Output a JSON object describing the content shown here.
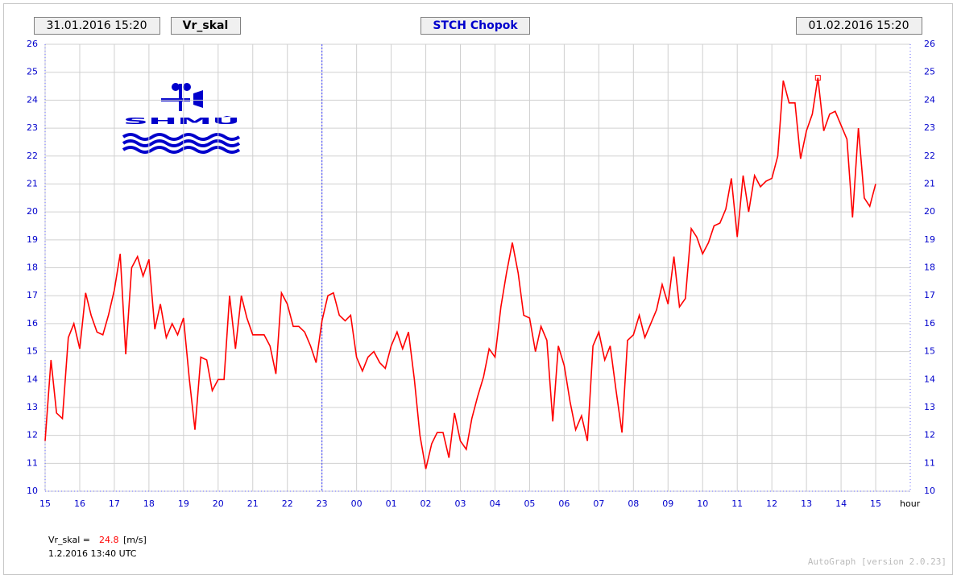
{
  "chart_data": {
    "type": "line",
    "title": "STCH Chopok",
    "start_time": "31.01.2016 15:20",
    "end_time": "01.02.2016 15:20",
    "variable": "Vr_skal",
    "logo": "SHMÚ",
    "xlabel": "hour",
    "color": "#ff0000",
    "grid": true,
    "xlim": [
      0,
      25
    ],
    "ylim": [
      10,
      26
    ],
    "yticks": [
      10,
      11,
      12,
      13,
      14,
      15,
      16,
      17,
      18,
      19,
      20,
      21,
      22,
      23,
      24,
      25,
      26
    ],
    "xticks": [
      {
        "value": 0,
        "label": "15"
      },
      {
        "value": 1,
        "label": "16"
      },
      {
        "value": 2,
        "label": "17"
      },
      {
        "value": 3,
        "label": "18"
      },
      {
        "value": 4,
        "label": "19"
      },
      {
        "value": 5,
        "label": "20"
      },
      {
        "value": 6,
        "label": "21"
      },
      {
        "value": 7,
        "label": "22"
      },
      {
        "value": 8,
        "label": "23"
      },
      {
        "value": 9,
        "label": "00"
      },
      {
        "value": 10,
        "label": "01"
      },
      {
        "value": 11,
        "label": "02"
      },
      {
        "value": 12,
        "label": "03"
      },
      {
        "value": 13,
        "label": "04"
      },
      {
        "value": 14,
        "label": "05"
      },
      {
        "value": 15,
        "label": "06"
      },
      {
        "value": 16,
        "label": "07"
      },
      {
        "value": 17,
        "label": "08"
      },
      {
        "value": 18,
        "label": "09"
      },
      {
        "value": 19,
        "label": "10"
      },
      {
        "value": 20,
        "label": "11"
      },
      {
        "value": 21,
        "label": "12"
      },
      {
        "value": 22,
        "label": "13"
      },
      {
        "value": 23,
        "label": "14"
      },
      {
        "value": 24,
        "label": "15"
      }
    ],
    "vline": 8,
    "x": [
      0,
      0.17,
      0.33,
      0.5,
      0.67,
      0.83,
      1,
      1.17,
      1.33,
      1.5,
      1.67,
      1.83,
      2,
      2.17,
      2.33,
      2.5,
      2.67,
      2.83,
      3,
      3.17,
      3.33,
      3.5,
      3.67,
      3.83,
      4,
      4.17,
      4.33,
      4.5,
      4.67,
      4.83,
      5,
      5.17,
      5.33,
      5.5,
      5.67,
      5.83,
      6,
      6.17,
      6.33,
      6.5,
      6.67,
      6.83,
      7,
      7.17,
      7.33,
      7.5,
      7.67,
      7.83,
      8,
      8.17,
      8.33,
      8.5,
      8.67,
      8.83,
      9,
      9.17,
      9.33,
      9.5,
      9.67,
      9.83,
      10,
      10.17,
      10.33,
      10.5,
      10.67,
      10.83,
      11,
      11.17,
      11.33,
      11.5,
      11.67,
      11.83,
      12,
      12.17,
      12.33,
      12.5,
      12.67,
      12.83,
      13,
      13.17,
      13.33,
      13.5,
      13.67,
      13.83,
      14,
      14.17,
      14.33,
      14.5,
      14.67,
      14.83,
      15,
      15.17,
      15.33,
      15.5,
      15.67,
      15.83,
      16,
      16.17,
      16.33,
      16.5,
      16.67,
      16.83,
      17,
      17.17,
      17.33,
      17.5,
      17.67,
      17.83,
      18,
      18.17,
      18.33,
      18.5,
      18.67,
      18.83,
      19,
      19.17,
      19.33,
      19.5,
      19.67,
      19.83,
      20,
      20.17,
      20.33,
      20.5,
      20.67,
      20.83,
      21,
      21.17,
      21.33,
      21.5,
      21.67,
      21.83,
      22,
      22.17,
      22.33,
      22.5,
      22.67,
      22.83,
      23,
      23.17,
      23.33,
      23.5,
      23.67,
      23.83,
      24
    ],
    "values": [
      11.8,
      14.7,
      12.8,
      12.6,
      15.5,
      16.0,
      15.1,
      17.1,
      16.3,
      15.7,
      15.6,
      16.3,
      17.2,
      18.5,
      14.9,
      18.0,
      18.4,
      17.7,
      18.3,
      15.8,
      16.7,
      15.5,
      16.0,
      15.6,
      16.2,
      14.0,
      12.2,
      14.8,
      14.7,
      13.6,
      14.0,
      14.0,
      17.0,
      15.1,
      17.0,
      16.2,
      15.6,
      15.6,
      15.6,
      15.2,
      14.2,
      17.1,
      16.7,
      15.9,
      15.9,
      15.7,
      15.2,
      14.6,
      16.1,
      17.0,
      17.1,
      16.3,
      16.1,
      16.3,
      14.8,
      14.3,
      14.8,
      15.0,
      14.6,
      14.4,
      15.2,
      15.7,
      15.1,
      15.7,
      14.0,
      12.0,
      10.8,
      11.7,
      12.1,
      12.1,
      11.2,
      12.8,
      11.8,
      11.5,
      12.6,
      13.4,
      14.1,
      15.1,
      14.8,
      16.6,
      17.8,
      18.9,
      17.8,
      16.3,
      16.2,
      15.0,
      15.9,
      15.4,
      12.5,
      15.2,
      14.5,
      13.2,
      12.2,
      12.7,
      11.8,
      15.2,
      15.7,
      14.7,
      15.2,
      13.6,
      12.1,
      15.4,
      15.6,
      16.3,
      15.5,
      16.0,
      16.5,
      17.4,
      16.7,
      18.4,
      16.6,
      16.9,
      19.4,
      19.1,
      18.5,
      18.9,
      19.5,
      19.6,
      20.1,
      21.2,
      19.1,
      21.3,
      20.0,
      21.3,
      20.9,
      21.1,
      21.2,
      22.0,
      24.7,
      23.9,
      23.9,
      21.9,
      22.9,
      23.5,
      24.8,
      22.9,
      23.5,
      23.6,
      23.1,
      22.6,
      19.8,
      23.0,
      20.5,
      20.2,
      21.0
    ],
    "marker": {
      "x": 22.33,
      "value": 24.8
    },
    "readout_label": "Vr_skal =",
    "readout_unit": "[m/s]",
    "readout_time": "1.2.2016 13:40 UTC",
    "footer": "AutoGraph [version 2.0.23]"
  }
}
